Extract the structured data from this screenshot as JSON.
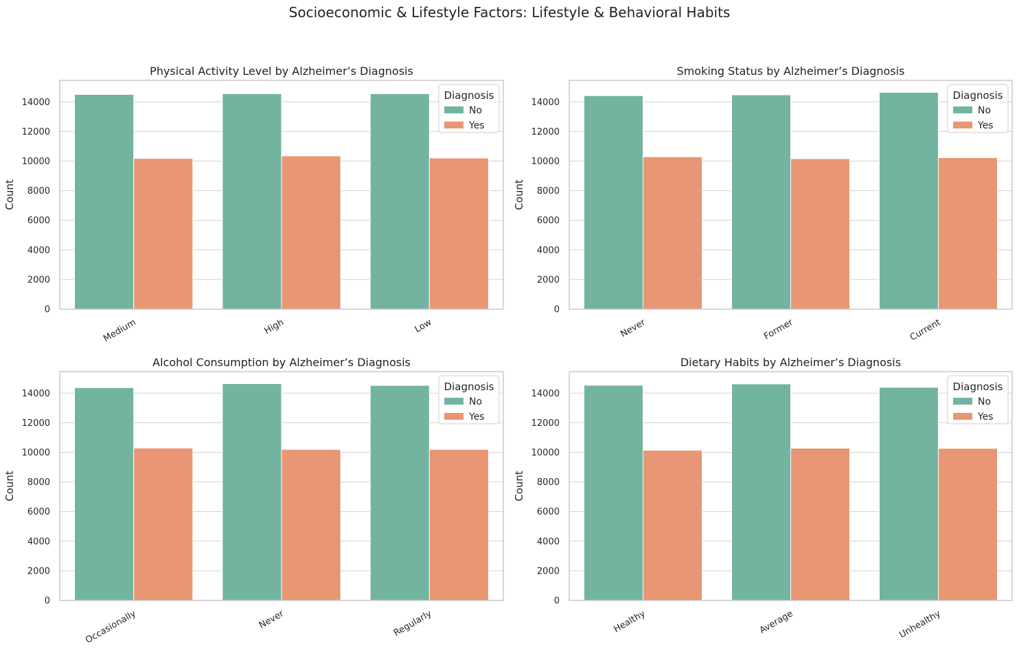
{
  "suptitle": "Socioeconomic & Lifestyle Factors: Lifestyle & Behavioral Habits",
  "colors": {
    "No": "#72b4a0",
    "Yes": "#e89674",
    "grid": "#d0d0d0",
    "frame": "#c8c8c8"
  },
  "chart_data": [
    {
      "type": "bar",
      "title": "Physical Activity Level by Alzheimer’s Diagnosis",
      "xlabel": "",
      "ylabel": "Count",
      "categories": [
        "Medium",
        "High",
        "Low"
      ],
      "series": [
        {
          "name": "No",
          "values": [
            14500,
            14550,
            14550
          ]
        },
        {
          "name": "Yes",
          "values": [
            10180,
            10350,
            10210
          ]
        }
      ],
      "ylim": [
        0,
        15450
      ],
      "yticks": [
        "0",
        "2000",
        "4000",
        "6000",
        "8000",
        "10000",
        "12000",
        "14000"
      ],
      "legend": {
        "title": "Diagnosis",
        "placement": "top-right"
      },
      "grid": true
    },
    {
      "type": "bar",
      "title": "Smoking Status by Alzheimer’s Diagnosis",
      "xlabel": "",
      "ylabel": "Count",
      "categories": [
        "Never",
        "Former",
        "Current"
      ],
      "series": [
        {
          "name": "No",
          "values": [
            14420,
            14470,
            14640
          ]
        },
        {
          "name": "Yes",
          "values": [
            10290,
            10160,
            10230
          ]
        }
      ],
      "ylim": [
        0,
        15450
      ],
      "yticks": [
        "0",
        "2000",
        "4000",
        "6000",
        "8000",
        "10000",
        "12000",
        "14000"
      ],
      "legend": {
        "title": "Diagnosis",
        "placement": "top-right"
      },
      "grid": true
    },
    {
      "type": "bar",
      "title": "Alcohol Consumption by Alzheimer’s Diagnosis",
      "xlabel": "",
      "ylabel": "Count",
      "categories": [
        "Occasionally",
        "Never",
        "Regularly"
      ],
      "series": [
        {
          "name": "No",
          "values": [
            14370,
            14640,
            14520
          ]
        },
        {
          "name": "Yes",
          "values": [
            10290,
            10200,
            10200
          ]
        }
      ],
      "ylim": [
        0,
        15450
      ],
      "yticks": [
        "0",
        "2000",
        "4000",
        "6000",
        "8000",
        "10000",
        "12000",
        "14000"
      ],
      "legend": {
        "title": "Diagnosis",
        "placement": "top-right"
      },
      "grid": true
    },
    {
      "type": "bar",
      "title": "Dietary Habits by Alzheimer’s Diagnosis",
      "xlabel": "",
      "ylabel": "Count",
      "categories": [
        "Healthy",
        "Average",
        "Unhealthy"
      ],
      "series": [
        {
          "name": "No",
          "values": [
            14530,
            14620,
            14390
          ]
        },
        {
          "name": "Yes",
          "values": [
            10140,
            10280,
            10270
          ]
        }
      ],
      "ylim": [
        0,
        15450
      ],
      "yticks": [
        "0",
        "2000",
        "4000",
        "6000",
        "8000",
        "10000",
        "12000",
        "14000"
      ],
      "legend": {
        "title": "Diagnosis",
        "placement": "top-right"
      },
      "grid": true
    }
  ]
}
